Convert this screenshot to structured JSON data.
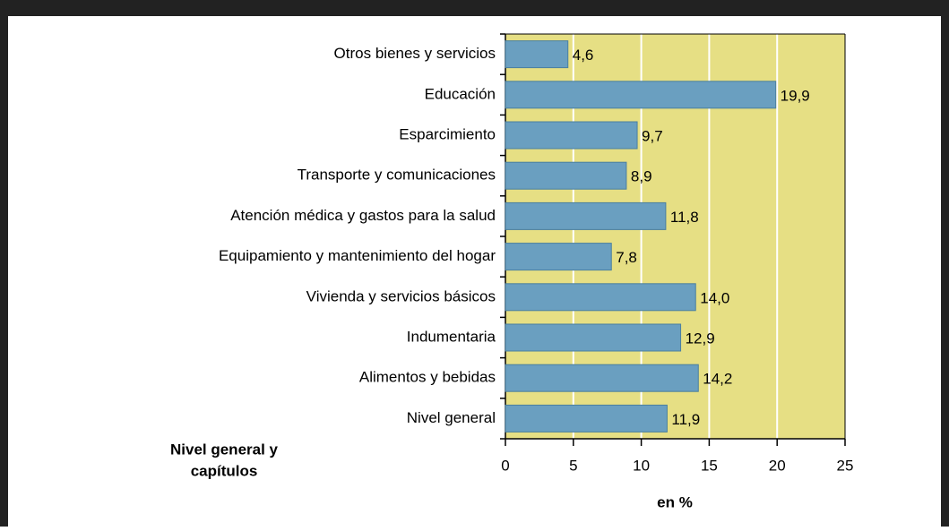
{
  "chart_data": {
    "type": "bar",
    "orientation": "horizontal",
    "categories": [
      "Otros bienes y servicios",
      "Educación",
      "Esparcimiento",
      "Transporte y comunicaciones",
      "Atención médica y gastos para la salud",
      "Equipamiento y mantenimiento del hogar",
      "Vivienda y servicios básicos",
      "Indumentaria",
      "Alimentos y bebidas",
      "Nivel general"
    ],
    "values": [
      4.6,
      19.9,
      9.7,
      8.9,
      11.8,
      7.8,
      14.0,
      12.9,
      14.2,
      11.9
    ],
    "value_labels": [
      "4,6",
      "19,9",
      "9,7",
      "8,9",
      "11,8",
      "7,8",
      "14,0",
      "12,9",
      "14,2",
      "11,9"
    ],
    "color": "#6a9fc0",
    "xlim": [
      0,
      25
    ],
    "xticks": [
      0,
      5,
      10,
      15,
      20,
      25
    ],
    "grid": true,
    "xlabel": "en %",
    "ylabel_lines": [
      "Nivel general y",
      "capítulos"
    ]
  }
}
